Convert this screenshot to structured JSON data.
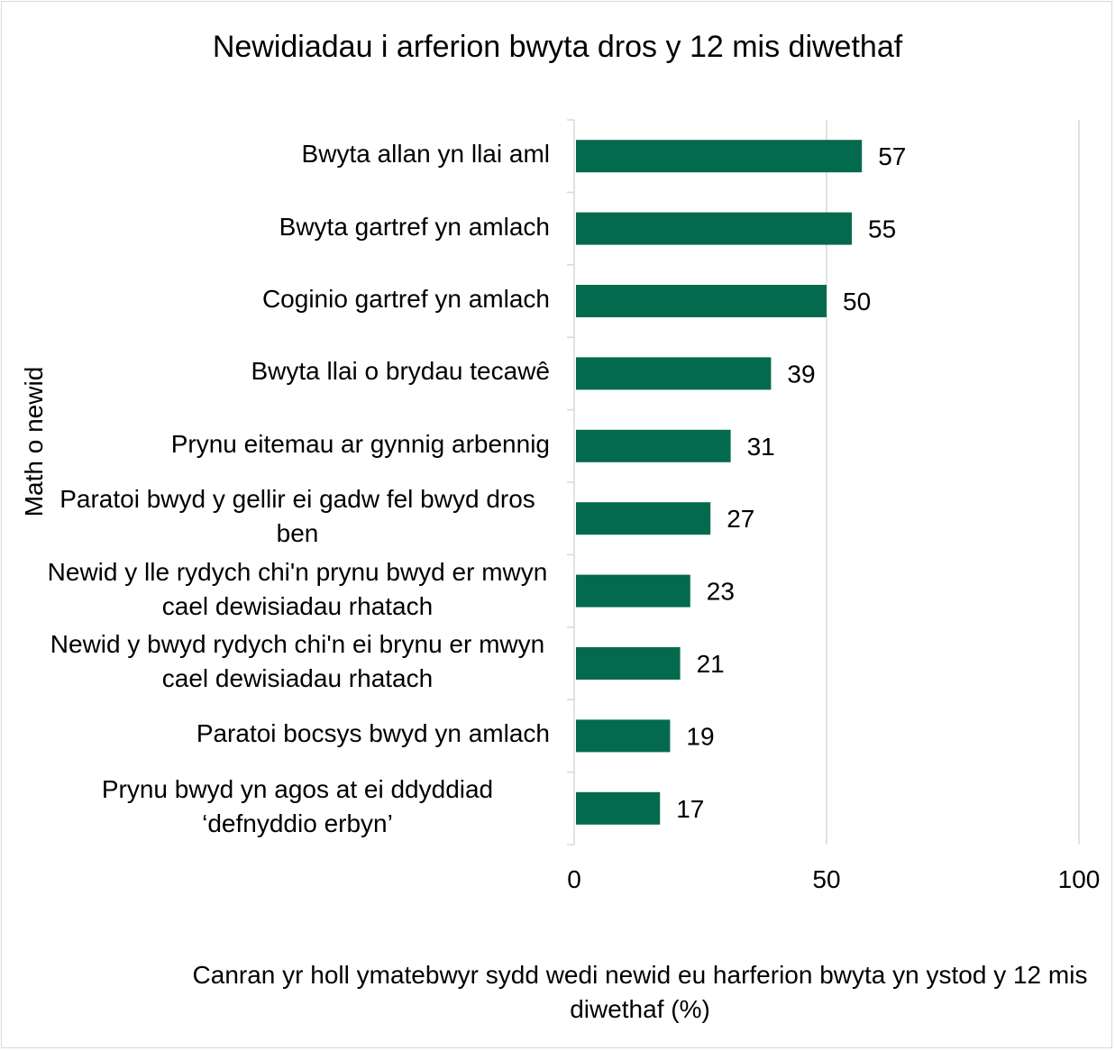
{
  "chart_data": {
    "type": "bar",
    "orientation": "horizontal",
    "title": "Newidiadau i arferion bwyta dros y 12 mis diwethaf",
    "ylabel": "Math o newid",
    "xlabel": "Canran yr holl ymatebwyr sydd wedi newid eu harferion bwyta yn ystod y 12 mis diwethaf (%)",
    "categories": [
      "Bwyta allan yn llai aml",
      "Bwyta gartref yn amlach",
      "Coginio gartref yn amlach",
      "Bwyta llai o brydau tecawê",
      "Prynu eitemau ar gynnig arbennig",
      "Paratoi bwyd y gellir ei gadw fel bwyd dros ben",
      "Newid y lle rydych chi'n prynu bwyd er mwyn cael dewisiadau rhatach",
      "Newid y bwyd rydych chi'n ei brynu er mwyn cael dewisiadau rhatach",
      "Paratoi bocsys bwyd yn amlach",
      "Prynu bwyd yn agos at ei ddyddiad ‘defnyddio erbyn’"
    ],
    "values": [
      57,
      55,
      50,
      39,
      31,
      27,
      23,
      21,
      19,
      17
    ],
    "xlim": [
      0,
      100
    ],
    "xticks": [
      "0",
      "50",
      "100"
    ],
    "bar_color": "#046a4e",
    "grid": true,
    "legend": "none"
  }
}
